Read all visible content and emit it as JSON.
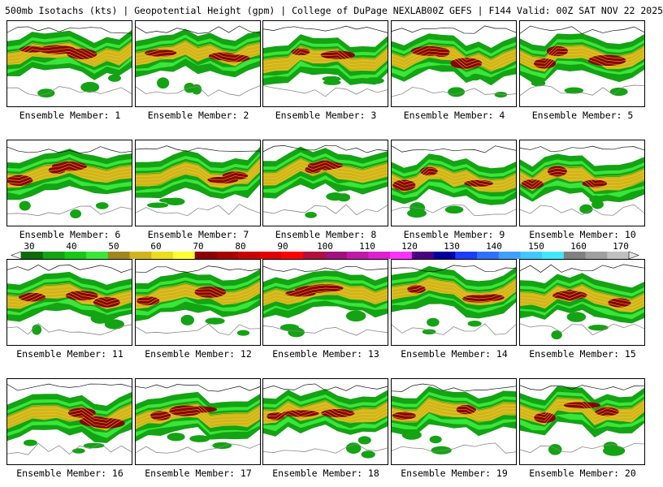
{
  "header": {
    "left": "500mb Isotachs (kts) | Geopotential Height (gpm) | College of DuPage NEXLAB",
    "right": "00Z GEFS | F144 Valid: 00Z SAT NOV 22 2025"
  },
  "member_label_prefix": "Ensemble Member: ",
  "members": [
    "1",
    "2",
    "3",
    "4",
    "5",
    "6",
    "7",
    "8",
    "9",
    "10",
    "11",
    "12",
    "13",
    "14",
    "15",
    "16",
    "17",
    "18",
    "19",
    "20"
  ],
  "colorbar": {
    "ticks": [
      "30",
      "40",
      "50",
      "60",
      "70",
      "80",
      "90",
      "100",
      "110",
      "120",
      "130",
      "140",
      "150",
      "160",
      "170"
    ],
    "colors": [
      "#0b6b0b",
      "#13a313",
      "#16c916",
      "#39e639",
      "#a0861e",
      "#d2b31e",
      "#eedd1c",
      "#ffff33",
      "#8b0000",
      "#a80000",
      "#c80000",
      "#e00000",
      "#ff0000",
      "#b0103c",
      "#a01080",
      "#c018a8",
      "#e020d0",
      "#ff30ff",
      "#4b0082",
      "#0000a0",
      "#1c3cff",
      "#3070ff",
      "#40a0ff",
      "#40c8ff",
      "#40e8ff",
      "#808080",
      "#a0a0a0",
      "#c0c0c0"
    ]
  },
  "legend_scale": "isotach speed (kts)"
}
